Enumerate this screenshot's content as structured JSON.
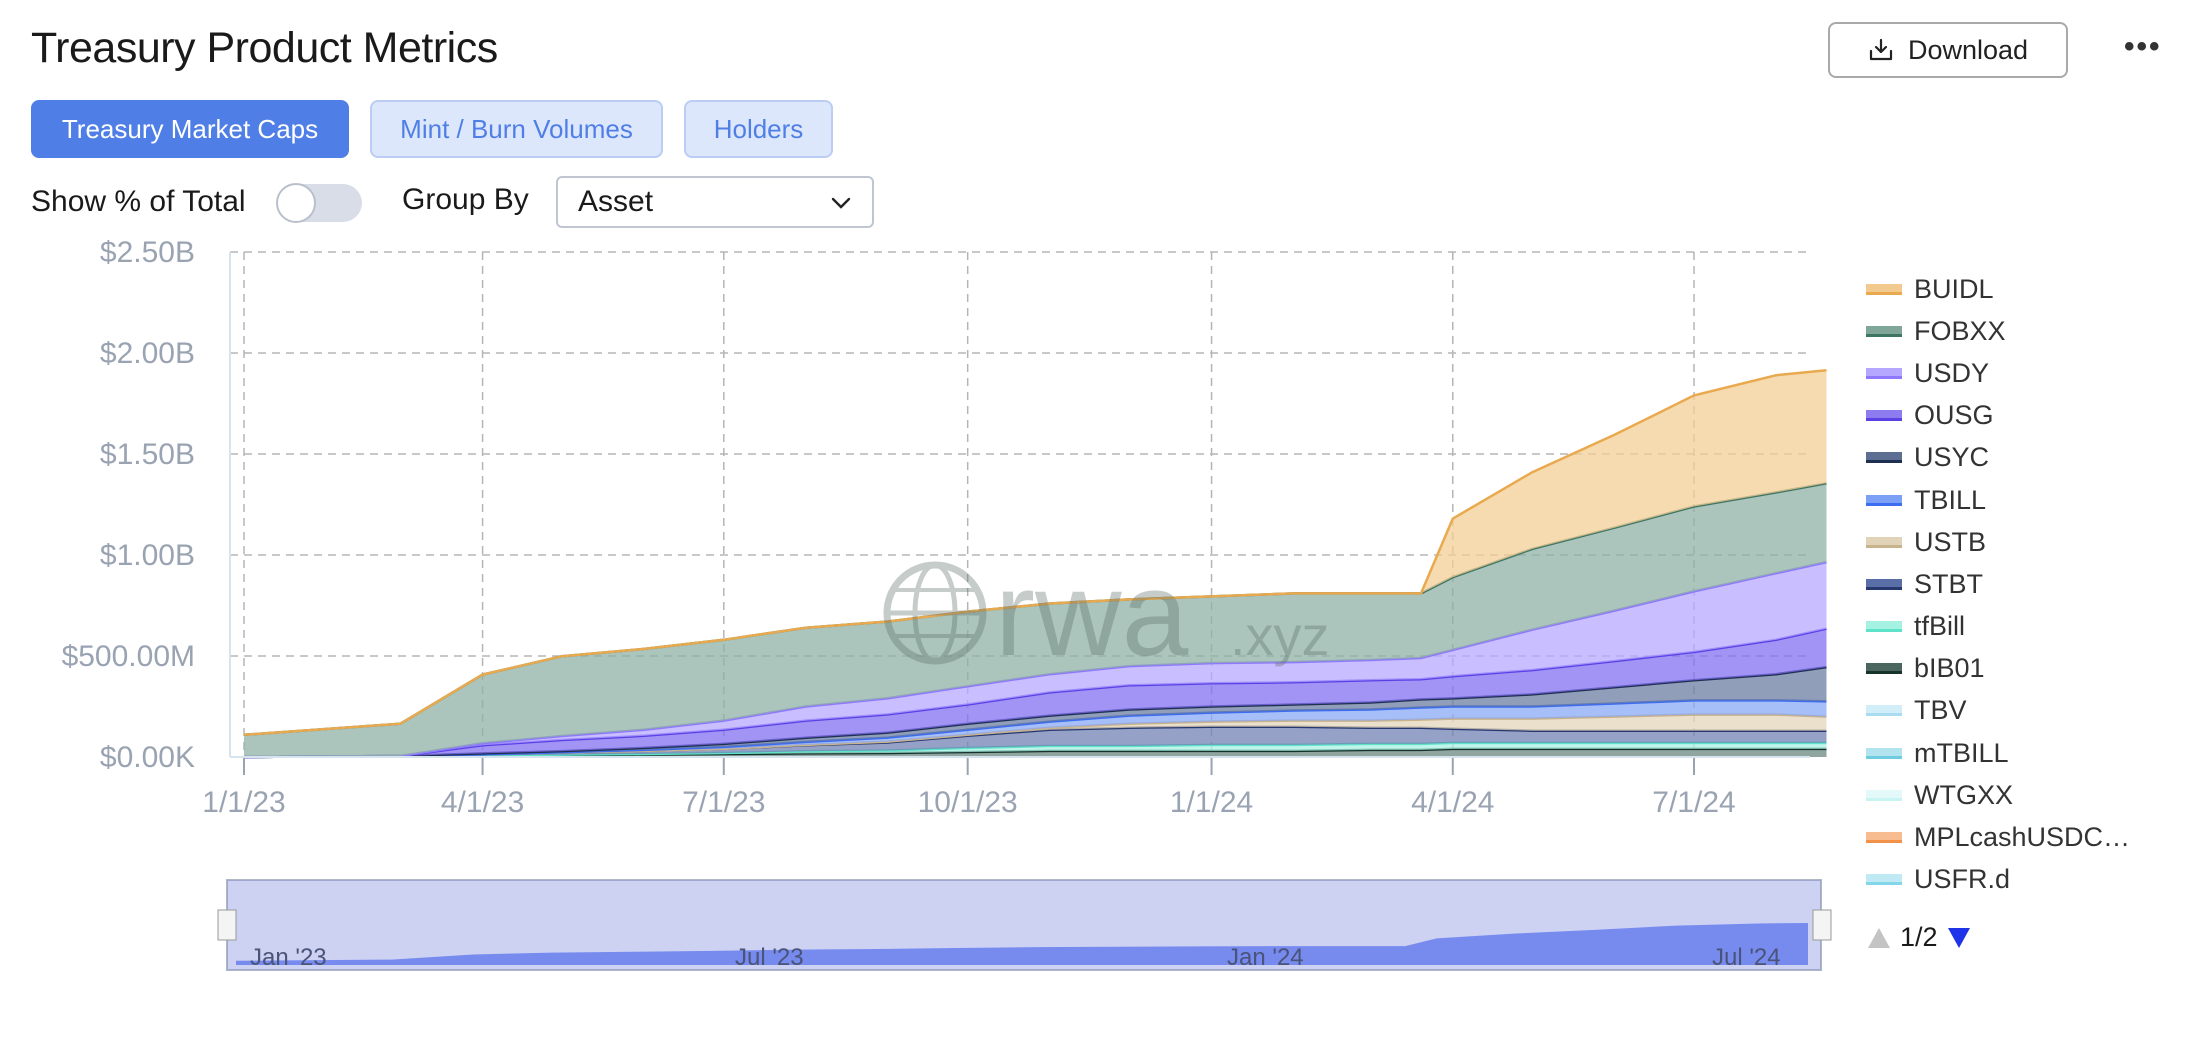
{
  "header": {
    "title": "Treasury Product Metrics",
    "download_label": "Download",
    "more_label": "•••"
  },
  "tabs": [
    {
      "label": "Treasury Market Caps",
      "active": true
    },
    {
      "label": "Mint / Burn Volumes",
      "active": false
    },
    {
      "label": "Holders",
      "active": false
    }
  ],
  "controls": {
    "show_pct_label": "Show % of Total",
    "show_pct_on": false,
    "group_by_label": "Group By",
    "group_by_value": "Asset"
  },
  "watermark": {
    "main": "rwa",
    "suffix": ".xyz"
  },
  "navigator": {
    "labels": [
      "Jan '23",
      "Jul '23",
      "Jan '24",
      "Jul '24"
    ]
  },
  "legend_pager": "1/2",
  "colors": {
    "accent": "#4f7fe6",
    "BUIDL": "#e9a94f",
    "FOBXX": "#3f7563",
    "USDY": "#8f78ff",
    "OUSG": "#5a41e6",
    "USYC": "#1e2f52",
    "TBILL": "#3c6cf0",
    "USTB": "#c9b38c",
    "STBT": "#26386e",
    "tfBill": "#5ee3c8",
    "bIB01": "#15322b",
    "TBV": "#a9dcf0",
    "mTBILL": "#6fcbe0",
    "WTGXX": "#c8f4f4",
    "MPLcashUSDC": "#f2914a",
    "USFRd": "#84d6ea"
  },
  "chart_data": {
    "type": "area",
    "stacked": true,
    "x_tick_labels": [
      "1/1/23",
      "4/1/23",
      "7/1/23",
      "10/1/23",
      "1/1/24",
      "4/1/24",
      "7/1/24"
    ],
    "y_tick_labels": [
      "$0.00K",
      "$500.00M",
      "$1.00B",
      "$1.50B",
      "$2.00B",
      "$2.50B"
    ],
    "ylim": [
      0,
      2500
    ],
    "y_unit": "$M",
    "grid": true,
    "legend_position": "right",
    "x": [
      "2023-01-01",
      "2023-03-01",
      "2023-04-01",
      "2023-05-01",
      "2023-06-01",
      "2023-07-01",
      "2023-08-01",
      "2023-09-01",
      "2023-10-01",
      "2023-11-01",
      "2023-12-01",
      "2024-01-01",
      "2024-02-01",
      "2024-03-01",
      "2024-03-20",
      "2024-04-01",
      "2024-05-01",
      "2024-06-01",
      "2024-07-01",
      "2024-08-01",
      "2024-08-20"
    ],
    "series": [
      {
        "name": "bIB01",
        "values": [
          0,
          5,
          8,
          10,
          12,
          15,
          18,
          20,
          25,
          30,
          30,
          30,
          30,
          35,
          35,
          40,
          40,
          40,
          40,
          40,
          40
        ]
      },
      {
        "name": "tfBill",
        "values": [
          0,
          0,
          0,
          2,
          3,
          5,
          10,
          12,
          20,
          25,
          25,
          30,
          30,
          30,
          30,
          30,
          30,
          30,
          30,
          30,
          30
        ]
      },
      {
        "name": "STBT",
        "values": [
          0,
          0,
          5,
          10,
          15,
          20,
          30,
          40,
          60,
          80,
          90,
          90,
          90,
          80,
          80,
          70,
          60,
          60,
          60,
          60,
          60
        ]
      },
      {
        "name": "USTB",
        "values": [
          0,
          0,
          0,
          0,
          0,
          0,
          2,
          4,
          5,
          10,
          20,
          25,
          30,
          35,
          40,
          50,
          60,
          70,
          80,
          80,
          70
        ]
      },
      {
        "name": "TBILL",
        "values": [
          0,
          0,
          0,
          2,
          5,
          10,
          15,
          20,
          25,
          30,
          40,
          45,
          50,
          55,
          60,
          60,
          60,
          65,
          70,
          70,
          75
        ]
      },
      {
        "name": "USYC",
        "values": [
          0,
          0,
          5,
          5,
          10,
          15,
          20,
          25,
          30,
          30,
          30,
          30,
          30,
          35,
          40,
          40,
          60,
          80,
          100,
          130,
          170
        ]
      },
      {
        "name": "OUSG",
        "values": [
          0,
          0,
          40,
          55,
          60,
          70,
          85,
          90,
          95,
          115,
          120,
          115,
          110,
          110,
          100,
          110,
          120,
          130,
          140,
          170,
          190
        ]
      },
      {
        "name": "USDY",
        "values": [
          0,
          0,
          10,
          20,
          30,
          45,
          70,
          80,
          90,
          90,
          95,
          100,
          100,
          100,
          105,
          130,
          200,
          250,
          300,
          330,
          330
        ]
      },
      {
        "name": "FOBXX",
        "values": [
          110,
          160,
          340,
          395,
          400,
          400,
          390,
          380,
          370,
          350,
          330,
          330,
          340,
          330,
          320,
          360,
          400,
          410,
          420,
          400,
          390
        ]
      },
      {
        "name": "BUIDL",
        "values": [
          0,
          0,
          0,
          0,
          0,
          0,
          0,
          0,
          0,
          0,
          0,
          0,
          0,
          0,
          0,
          290,
          380,
          460,
          550,
          580,
          560
        ]
      }
    ]
  }
}
